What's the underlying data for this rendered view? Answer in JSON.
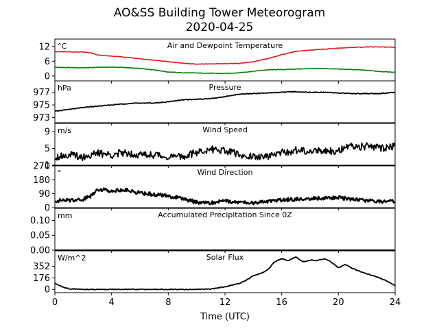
{
  "figure": {
    "title": "AO&SS Building Tower Meteorogram",
    "subtitle": "2020-04-25",
    "xlabel": "Time (UTC)",
    "xticks": [
      "0",
      "4",
      "8",
      "12",
      "16",
      "20",
      "24"
    ]
  },
  "chart_data": [
    {
      "type": "line",
      "title": "Air and Dewpoint Temperature",
      "unit": "°C",
      "ylim": [
        -2,
        15
      ],
      "yticks": [
        0,
        6,
        12
      ],
      "x": [
        0,
        1,
        2,
        2.5,
        3,
        4,
        5,
        6,
        7,
        8,
        9,
        10,
        11,
        12,
        13,
        14,
        15,
        16,
        17,
        18,
        19,
        20,
        21,
        22,
        23,
        24
      ],
      "series": [
        {
          "color": "#e41a1c",
          "values": [
            9.9,
            9.8,
            9.7,
            9.5,
            8.6,
            8.1,
            7.6,
            7.0,
            6.4,
            5.8,
            5.2,
            4.8,
            4.9,
            5.0,
            5.1,
            5.8,
            7.0,
            8.6,
            10.0,
            10.5,
            10.9,
            11.3,
            11.6,
            11.8,
            11.8,
            11.6
          ]
        },
        {
          "color": "#008000",
          "values": [
            3.5,
            3.4,
            3.3,
            3.4,
            3.5,
            3.6,
            3.4,
            3.0,
            2.5,
            1.6,
            1.3,
            1.2,
            1.1,
            1.0,
            1.3,
            1.9,
            2.5,
            2.6,
            2.8,
            3.0,
            3.0,
            2.8,
            2.6,
            2.3,
            1.8,
            1.5
          ]
        }
      ]
    },
    {
      "type": "line",
      "title": "Pressure",
      "unit": "hPa",
      "ylim": [
        972.2,
        978.8
      ],
      "yticks": [
        973,
        975,
        977
      ],
      "x": [
        0,
        1,
        2,
        3,
        4,
        5,
        6,
        7,
        8,
        9,
        10,
        11,
        12,
        13,
        14,
        15,
        16,
        17,
        18,
        19,
        20,
        21,
        22,
        23,
        24
      ],
      "series": [
        {
          "color": "#000000",
          "values": [
            974.0,
            974.3,
            974.6,
            974.8,
            975.0,
            975.2,
            975.3,
            975.3,
            975.5,
            975.8,
            975.9,
            976.0,
            976.3,
            976.7,
            976.8,
            976.9,
            977.0,
            977.1,
            977.0,
            977.0,
            976.9,
            976.8,
            976.8,
            976.8,
            977.0
          ]
        }
      ]
    },
    {
      "type": "line",
      "title": "Wind Speed",
      "unit": "m/s",
      "ylim": [
        1,
        11
      ],
      "yticks": [
        1,
        5,
        9
      ],
      "x": [
        0,
        1,
        2,
        3,
        4,
        5,
        6,
        7,
        8,
        9,
        10,
        11,
        12,
        13,
        14,
        15,
        16,
        17,
        18,
        19,
        20,
        21,
        22,
        23,
        24
      ],
      "series": [
        {
          "color": "#000000",
          "values": [
            3.0,
            3.5,
            3.0,
            3.8,
            3.5,
            4.0,
            3.5,
            3.5,
            3.0,
            3.0,
            4.0,
            4.8,
            4.5,
            3.5,
            3.0,
            3.0,
            4.0,
            4.5,
            4.5,
            4.5,
            4.5,
            5.5,
            5.5,
            5.0,
            5.5
          ]
        }
      ]
    },
    {
      "type": "line",
      "title": "Wind Direction",
      "unit": "°",
      "ylim": [
        0,
        270
      ],
      "yticks": [
        0,
        90,
        180,
        270
      ],
      "x": [
        0,
        1,
        2,
        2.5,
        3,
        3.5,
        4,
        5,
        6,
        7,
        8,
        9,
        10,
        11,
        12,
        13,
        14,
        15,
        16,
        17,
        18,
        19,
        20,
        21,
        22,
        23,
        24
      ],
      "series": [
        {
          "color": "#000000",
          "values": [
            45,
            48,
            55,
            75,
            120,
            115,
            110,
            115,
            95,
            85,
            75,
            60,
            35,
            30,
            45,
            35,
            30,
            40,
            50,
            55,
            60,
            60,
            65,
            55,
            45,
            40,
            40
          ]
        }
      ]
    },
    {
      "type": "line",
      "title": "Accumulated Precipitation Since 0Z",
      "unit": "mm",
      "ylim": [
        0,
        0.14
      ],
      "yticks": [
        0.0,
        0.05,
        0.1
      ],
      "ytick_labels": [
        "0.00",
        "0.05",
        "0.10"
      ],
      "x": [
        0,
        24
      ],
      "series": [
        {
          "color": "#000000",
          "values": [
            0,
            0
          ]
        }
      ]
    },
    {
      "type": "line",
      "title": "Solar Flux",
      "unit": "W/m^2",
      "ylim": [
        -50,
        590
      ],
      "yticks": [
        0,
        176,
        352
      ],
      "x": [
        0,
        0.5,
        1,
        2,
        4,
        6,
        8,
        10,
        11,
        12,
        13,
        13.5,
        14,
        14.5,
        15,
        15.5,
        16,
        16.5,
        17,
        17.5,
        18,
        18.5,
        19,
        19.5,
        20,
        20.5,
        21,
        22,
        23,
        24
      ],
      "series": [
        {
          "color": "#000000",
          "values": [
            95,
            40,
            10,
            0,
            0,
            0,
            0,
            0,
            5,
            40,
            90,
            140,
            210,
            240,
            300,
            420,
            470,
            440,
            500,
            420,
            450,
            440,
            470,
            420,
            330,
            380,
            320,
            240,
            170,
            60
          ]
        }
      ]
    }
  ]
}
